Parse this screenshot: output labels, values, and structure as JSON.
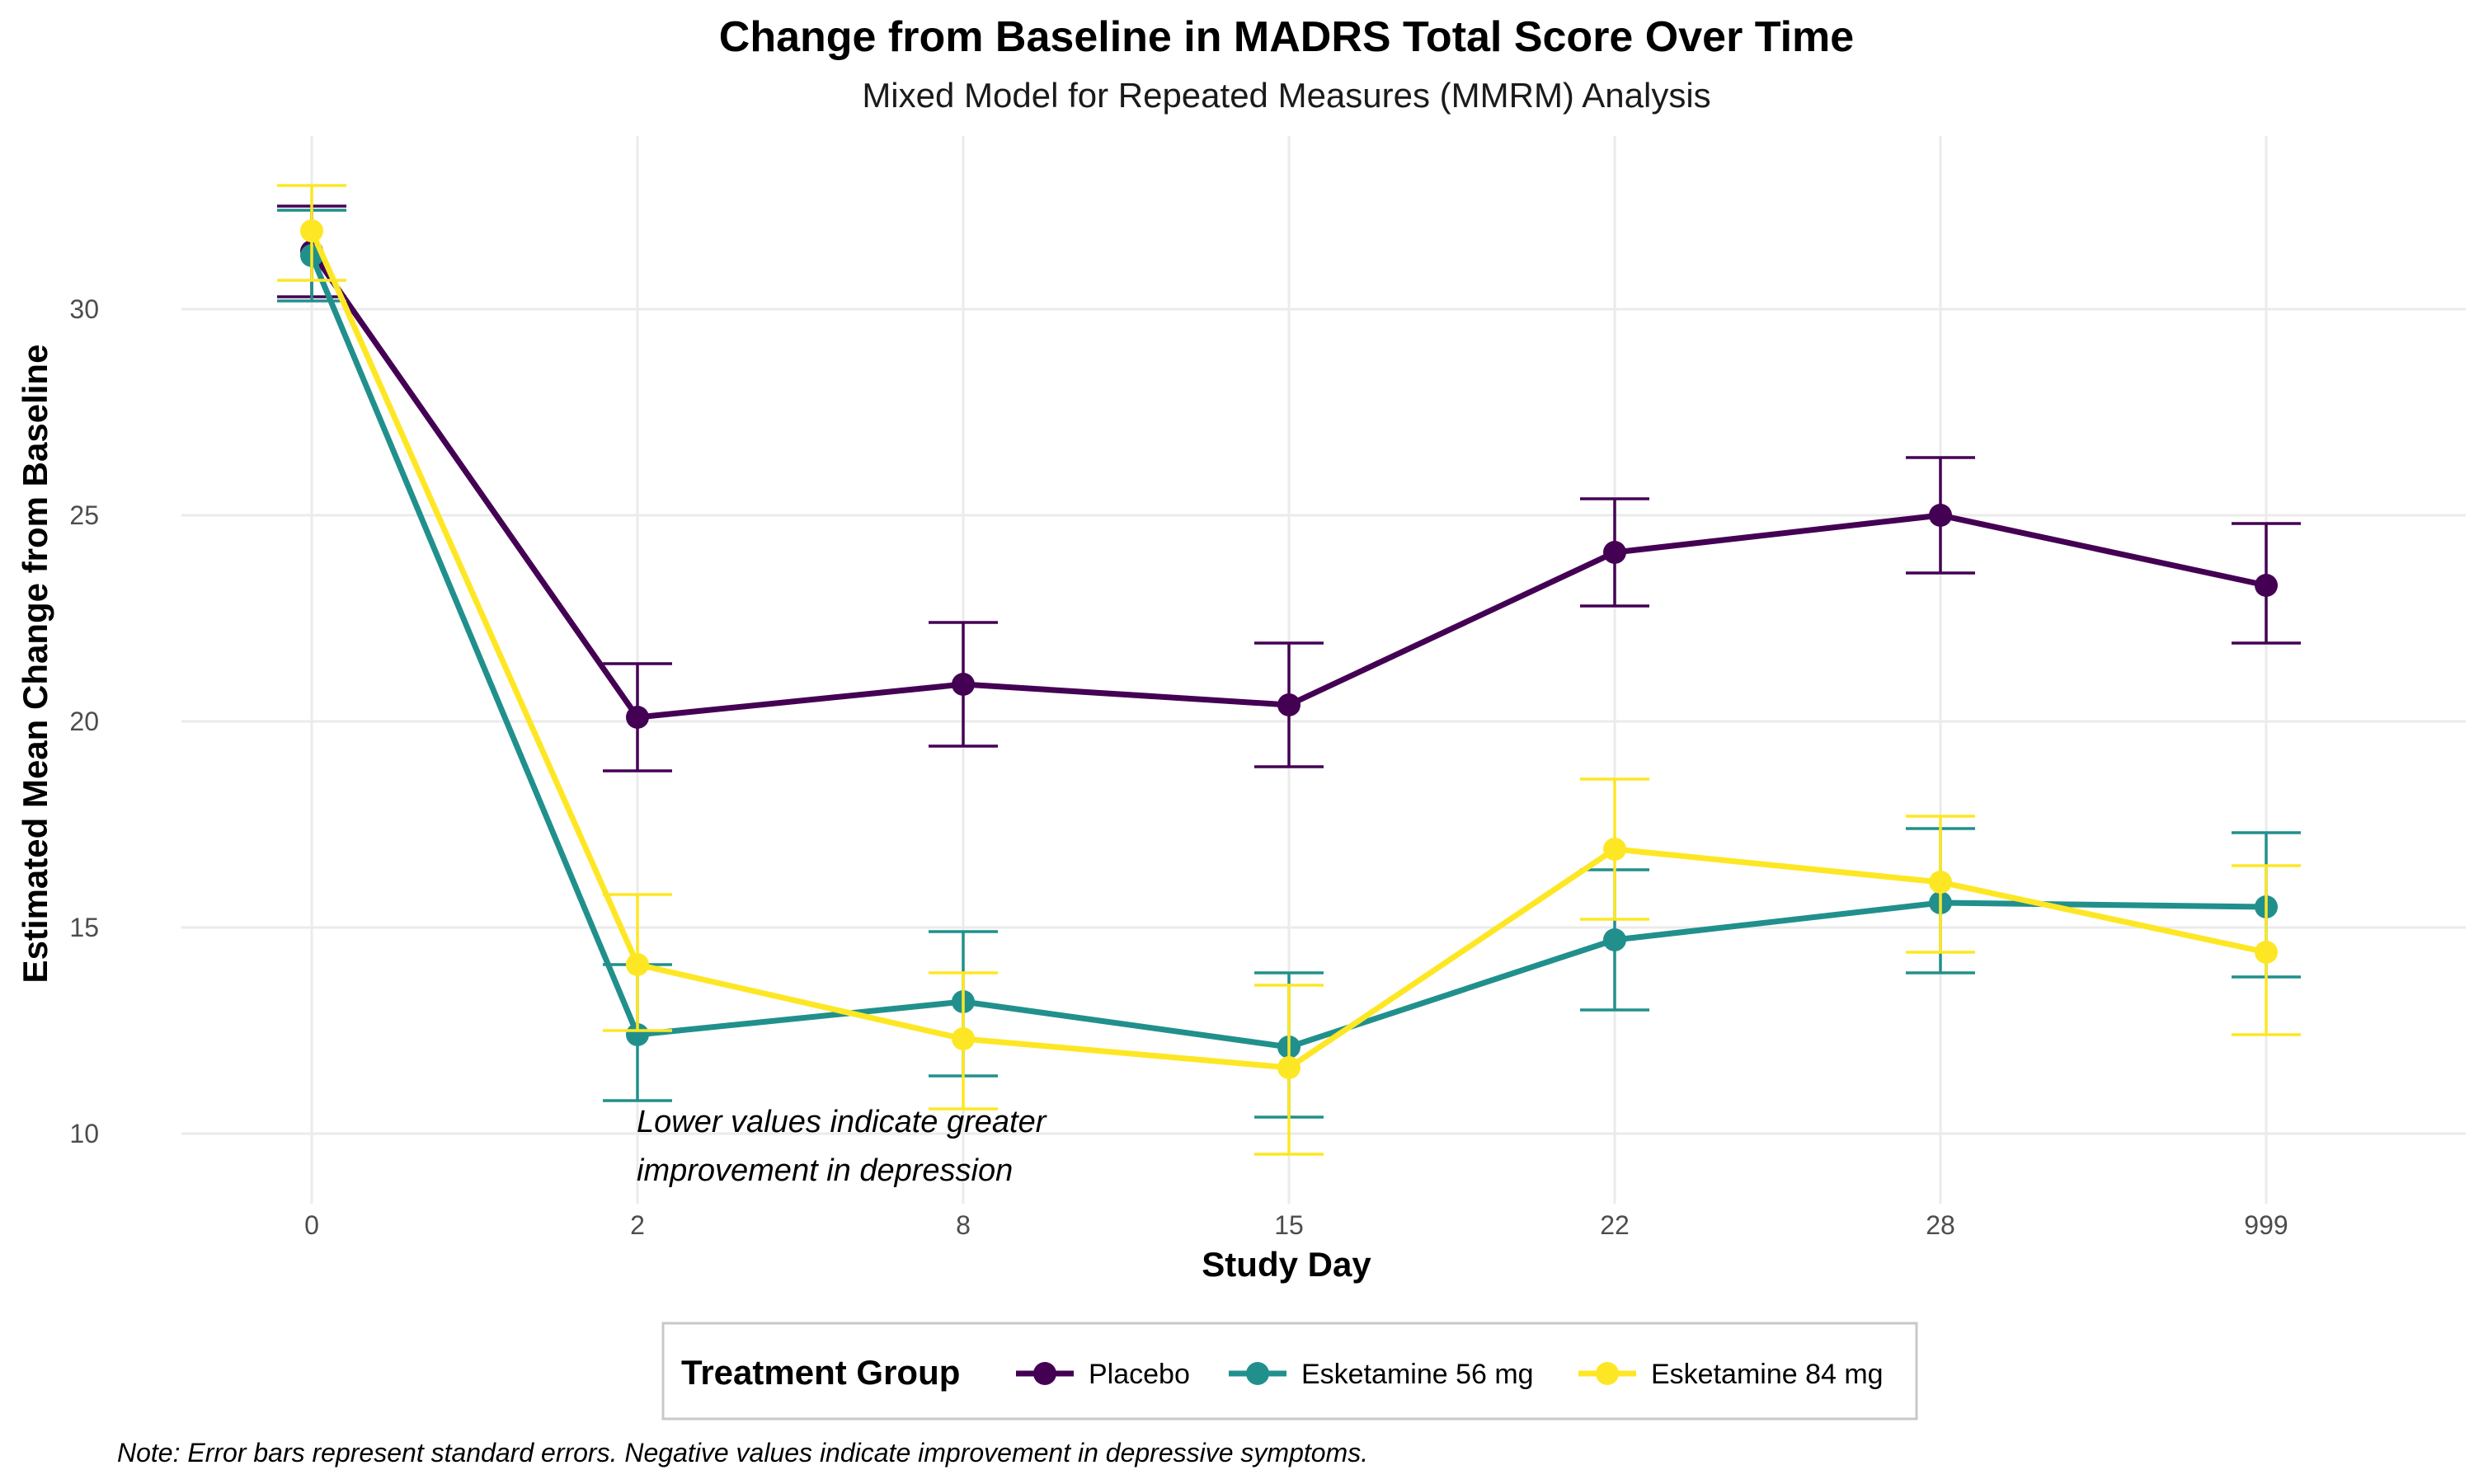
{
  "chart_data": {
    "type": "line",
    "title": "Change from Baseline in MADRS Total Score Over Time",
    "subtitle": "Mixed Model for Repeated Measures (MMRM) Analysis",
    "xlabel": "Study Day",
    "ylabel": "Estimated Mean Change from Baseline",
    "categories": [
      "0",
      "2",
      "8",
      "15",
      "22",
      "28",
      "999"
    ],
    "ylim": [
      8.3,
      34.2
    ],
    "yticks": [
      10,
      15,
      20,
      25,
      30
    ],
    "grid": true,
    "legend": {
      "title": "Treatment Group",
      "position": "bottom"
    },
    "series": [
      {
        "name": "Placebo",
        "color": "#440154",
        "values": [
          31.4,
          20.1,
          20.9,
          20.4,
          24.1,
          25.0,
          23.3
        ],
        "lower": [
          30.3,
          18.8,
          19.4,
          18.9,
          22.8,
          23.6,
          21.9
        ],
        "upper": [
          32.5,
          21.4,
          22.4,
          21.9,
          25.4,
          26.4,
          24.8
        ]
      },
      {
        "name": "Esketamine 56 mg",
        "color": "#21908C",
        "values": [
          31.3,
          12.4,
          13.2,
          12.1,
          14.7,
          15.6,
          15.5
        ],
        "lower": [
          30.2,
          10.8,
          11.4,
          10.4,
          13.0,
          13.9,
          13.8
        ],
        "upper": [
          32.4,
          14.1,
          14.9,
          13.9,
          16.4,
          17.4,
          17.3
        ]
      },
      {
        "name": "Esketamine 84 mg",
        "color": "#FDE725",
        "values": [
          31.9,
          14.1,
          12.3,
          11.6,
          16.9,
          16.1,
          14.4
        ],
        "lower": [
          30.7,
          12.5,
          10.6,
          9.5,
          15.2,
          14.4,
          12.4
        ],
        "upper": [
          33.0,
          15.8,
          13.9,
          13.6,
          18.6,
          17.7,
          16.5
        ]
      }
    ],
    "annotation": [
      "Lower values indicate greater",
      "improvement in depression"
    ],
    "note": "Note: Error bars represent standard errors. Negative values indicate improvement in depressive symptoms."
  }
}
